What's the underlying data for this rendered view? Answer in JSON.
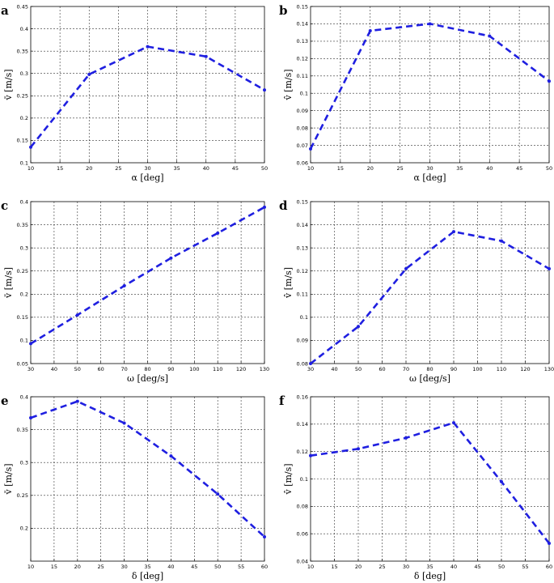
{
  "chart_data": [
    {
      "panel": "a",
      "type": "line",
      "xlabel": "α [deg]",
      "ylabel": "v̄ [m/s]",
      "xlim": [
        10,
        50
      ],
      "xticks": [
        10,
        15,
        20,
        25,
        30,
        35,
        40,
        45,
        50
      ],
      "ylim": [
        0.1,
        0.45
      ],
      "yticks": [
        0.1,
        0.15,
        0.2,
        0.25,
        0.3,
        0.35,
        0.4,
        0.45
      ],
      "ytick_labels": [
        "0.1",
        "0.15",
        "0.2",
        "0.25",
        "0.3",
        "0.35",
        "0.4",
        "0.45"
      ],
      "x": [
        10,
        20,
        30,
        40,
        50
      ],
      "y": [
        0.135,
        0.298,
        0.36,
        0.338,
        0.263
      ]
    },
    {
      "panel": "b",
      "type": "line",
      "xlabel": "α [deg]",
      "ylabel": "v̂ [m/s]",
      "xlim": [
        10,
        50
      ],
      "xticks": [
        10,
        15,
        20,
        25,
        30,
        35,
        40,
        45,
        50
      ],
      "ylim": [
        0.06,
        0.15
      ],
      "yticks": [
        0.06,
        0.07,
        0.08,
        0.09,
        0.1,
        0.11,
        0.12,
        0.13,
        0.14,
        0.15
      ],
      "ytick_labels": [
        "0.06",
        "0.07",
        "0.08",
        "0.09",
        "0.1",
        "0.11",
        "0.12",
        "0.13",
        "0.14",
        "0.15"
      ],
      "x": [
        10,
        20,
        30,
        40,
        50
      ],
      "y": [
        0.068,
        0.136,
        0.14,
        0.133,
        0.107
      ]
    },
    {
      "panel": "c",
      "type": "line",
      "xlabel": "ω [deg/s]",
      "ylabel": "v̄ [m/s]",
      "xlim": [
        30,
        130
      ],
      "xticks": [
        30,
        40,
        50,
        60,
        70,
        80,
        90,
        100,
        110,
        120,
        130
      ],
      "ylim": [
        0.05,
        0.4
      ],
      "yticks": [
        0.05,
        0.1,
        0.15,
        0.2,
        0.25,
        0.3,
        0.35,
        0.4
      ],
      "ytick_labels": [
        "0.05",
        "0.1",
        "0.15",
        "0.2",
        "0.25",
        "0.3",
        "0.35",
        "0.4"
      ],
      "x": [
        30,
        50,
        70,
        90,
        110,
        130
      ],
      "y": [
        0.093,
        0.155,
        0.218,
        0.278,
        0.332,
        0.388
      ]
    },
    {
      "panel": "d",
      "type": "line",
      "xlabel": "ω [deg/s]",
      "ylabel": "v̂ [m/s]",
      "xlim": [
        30,
        130
      ],
      "xticks": [
        30,
        40,
        50,
        60,
        70,
        80,
        90,
        100,
        110,
        120,
        130
      ],
      "ylim": [
        0.08,
        0.15
      ],
      "yticks": [
        0.08,
        0.09,
        0.1,
        0.11,
        0.12,
        0.13,
        0.14,
        0.15
      ],
      "ytick_labels": [
        "0.08",
        "0.09",
        "0.1",
        "0.11",
        "0.12",
        "0.13",
        "0.14",
        "0.15"
      ],
      "x": [
        30,
        50,
        70,
        90,
        110,
        130
      ],
      "y": [
        0.08,
        0.096,
        0.121,
        0.137,
        0.133,
        0.121
      ]
    },
    {
      "panel": "e",
      "type": "line",
      "xlabel": "δ [deg]",
      "ylabel": "v̄ [m/s]",
      "xlim": [
        10,
        60
      ],
      "xticks": [
        10,
        15,
        20,
        25,
        30,
        35,
        40,
        45,
        50,
        55,
        60
      ],
      "ylim": [
        0.15,
        0.4
      ],
      "yticks": [
        0.2,
        0.25,
        0.3,
        0.35,
        0.4
      ],
      "ytick_labels": [
        "0.2",
        "0.25",
        "0.3",
        "0.35",
        "0.4"
      ],
      "x": [
        10,
        20,
        30,
        40,
        50,
        60
      ],
      "y": [
        0.368,
        0.393,
        0.36,
        0.31,
        0.252,
        0.187
      ]
    },
    {
      "panel": "f",
      "type": "line",
      "xlabel": "δ [deg]",
      "ylabel": "v̂ [m/s]",
      "xlim": [
        10,
        60
      ],
      "xticks": [
        10,
        15,
        20,
        25,
        30,
        35,
        40,
        45,
        50,
        55,
        60
      ],
      "ylim": [
        0.04,
        0.16
      ],
      "yticks": [
        0.04,
        0.06,
        0.08,
        0.1,
        0.12,
        0.14,
        0.16
      ],
      "ytick_labels": [
        "0.04",
        "0.06",
        "0.08",
        "0.1",
        "0.12",
        "0.14",
        "0.16"
      ],
      "x": [
        10,
        20,
        30,
        40,
        50,
        60
      ],
      "y": [
        0.117,
        0.122,
        0.13,
        0.141,
        0.098,
        0.053
      ]
    }
  ]
}
